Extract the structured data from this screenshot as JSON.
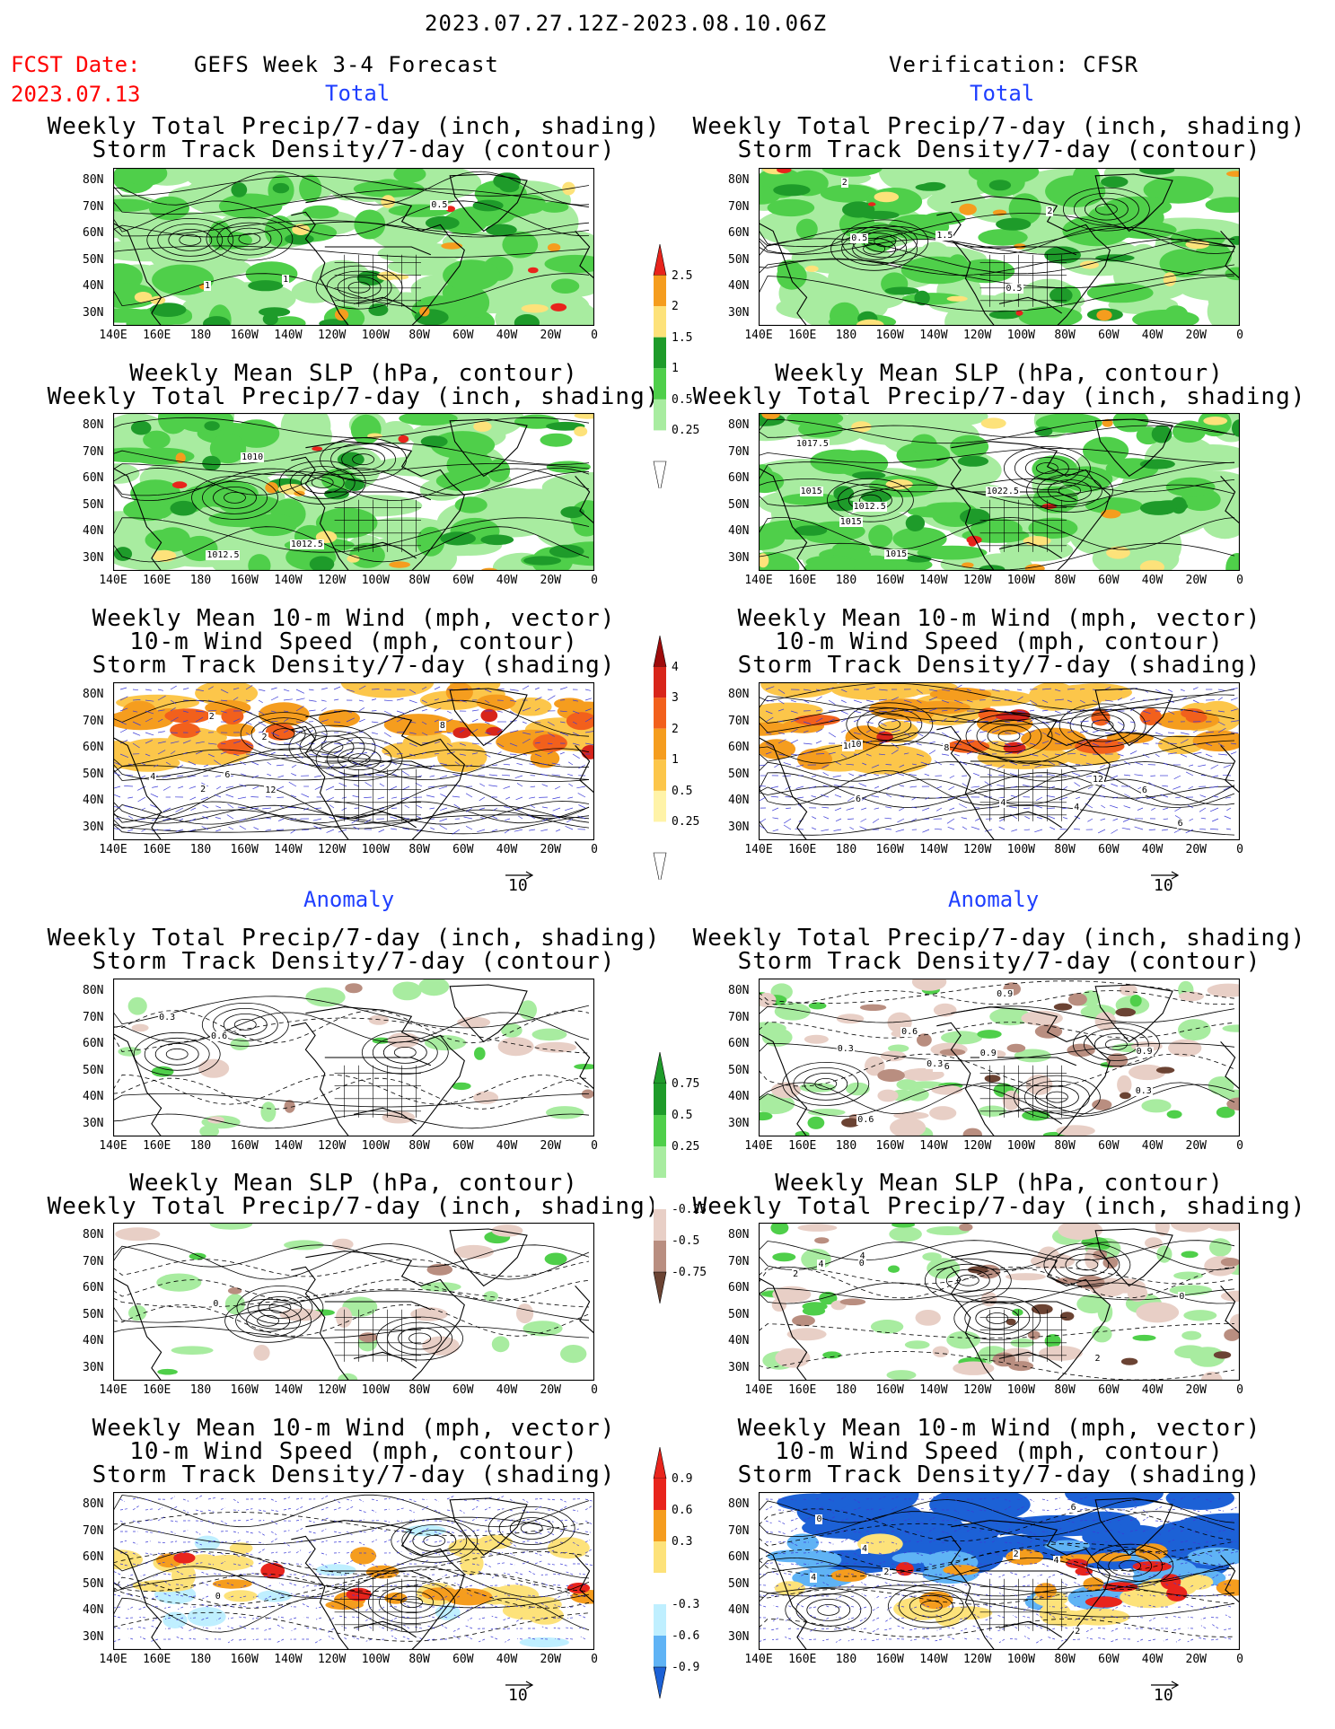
{
  "header": {
    "date_range": "2023.07.27.12Z-2023.08.10.06Z",
    "fcst_label": "FCST Date:",
    "fcst_date": "2023.07.13",
    "left_title": "GEFS Week 3-4 Forecast",
    "right_title": "Verification: CFSR"
  },
  "sections": {
    "total": "Total",
    "anomaly": "Anomaly"
  },
  "panel_titles": {
    "precip_storm": [
      "Weekly Total Precip/7-day (inch, shading)",
      "Storm Track Density/7-day (contour)"
    ],
    "slp_precip": [
      "Weekly Mean SLP (hPa, contour)",
      "Weekly Total Precip/7-day (inch, shading)"
    ],
    "wind_storm": [
      "Weekly Mean 10-m Wind (mph, vector)",
      "10-m Wind Speed (mph, contour)",
      "Storm Track Density/7-day (shading)"
    ]
  },
  "lat_labels": [
    "80N",
    "70N",
    "60N",
    "50N",
    "40N",
    "30N"
  ],
  "lon_labels": [
    "140E",
    "160E",
    "180",
    "160W",
    "140W",
    "120W",
    "100W",
    "80W",
    "60W",
    "40W",
    "20W",
    "0"
  ],
  "vector_ref": "10",
  "colorbars": {
    "precip_total": {
      "labels": [
        "2.5",
        "2",
        "1.5",
        "1",
        "0.5",
        "0.25"
      ],
      "colors": [
        "#e8241c",
        "#f59d1e",
        "#fde27a",
        "#1e9b2a",
        "#4fcf4a",
        "#a8eca0"
      ]
    },
    "storm_total": {
      "labels": [
        "4",
        "3",
        "2",
        "1",
        "0.5",
        "0.25"
      ],
      "colors": [
        "#9e0b0b",
        "#d8251a",
        "#f2601c",
        "#f59d1e",
        "#fcc64a",
        "#fff3a8"
      ]
    },
    "precip_anom": {
      "labels": [
        "0.75",
        "0.5",
        "0.25",
        "-0.25",
        "-0.5",
        "-0.75"
      ],
      "colors": [
        "#1e9b2a",
        "#4fcf4a",
        "#a8eca0",
        "#e8cfc6",
        "#b98e80",
        "#6b4333"
      ]
    },
    "storm_anom": {
      "labels": [
        "0.9",
        "0.6",
        "0.3",
        "-0.3",
        "-0.6",
        "-0.9"
      ],
      "colors": [
        "#e8241c",
        "#f59d1e",
        "#fde27a",
        "#bfefff",
        "#5fb3f5",
        "#1c61d6"
      ]
    }
  },
  "contour_labels": {
    "r1_left": [
      "1",
      "1",
      "0.5"
    ],
    "r1_right": [
      "0.5",
      "2",
      "1.5",
      "0.5",
      "2"
    ],
    "r2_left": [
      "1012.5",
      "1010",
      "1012.5"
    ],
    "r2_right": [
      "1012.5",
      "1015",
      "1017.5",
      "1015",
      "1015",
      "1022.5"
    ],
    "r3_left": [
      "2",
      "2",
      "4",
      "8",
      "2",
      "6",
      "12"
    ],
    "r3_right": [
      "6",
      "6",
      "4",
      "12",
      "6",
      "8",
      "10",
      "10",
      "4"
    ],
    "r4_left": [
      "0.6",
      "0.3"
    ],
    "r4_right": [
      "0.6",
      "0.9",
      "0.6",
      "0.3",
      "0.9",
      "0.6",
      "0.3",
      "0.3",
      "0.9"
    ],
    "r5_left": [
      "0"
    ],
    "r5_right": [
      "4",
      "2",
      "2",
      "0",
      "4",
      "0"
    ],
    "r6_left": [
      "0"
    ],
    "r6_right": [
      "4",
      "4",
      "6",
      "2",
      "2",
      "0",
      "2",
      "4"
    ]
  },
  "colors": {
    "fcst_red": "#ff0000",
    "section_blue": "#1f3fff"
  }
}
